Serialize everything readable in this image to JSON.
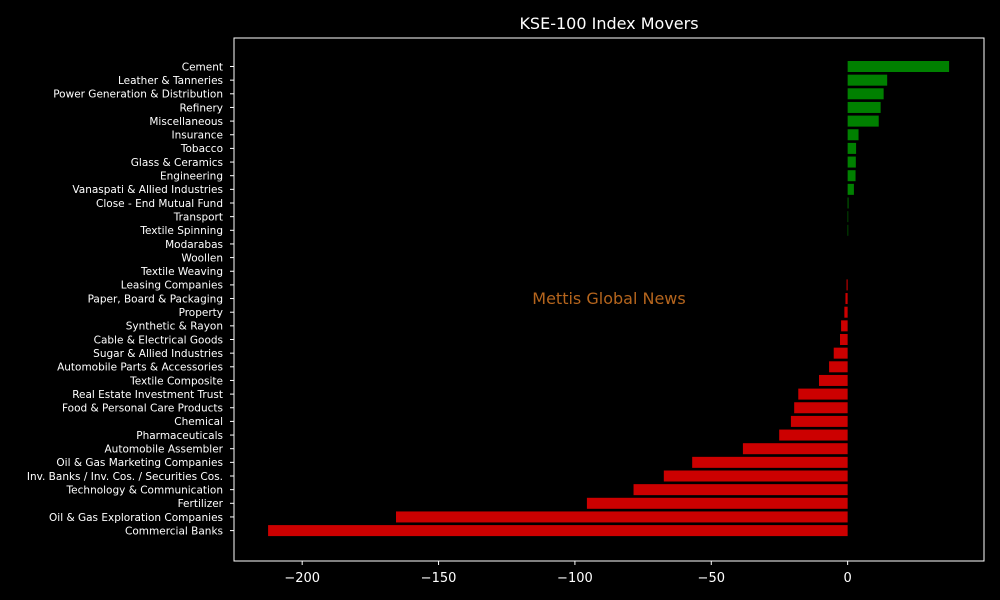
{
  "chart_data": {
    "type": "bar",
    "orientation": "horizontal",
    "title": "KSE-100 Index Movers",
    "xlabel": "",
    "ylabel": "",
    "xlim": [
      -225,
      50
    ],
    "x_ticks": [
      -200,
      -150,
      -100,
      -50,
      0
    ],
    "x_tick_labels": [
      "−200",
      "−150",
      "−100",
      "−50",
      "0"
    ],
    "grid": false,
    "colors": {
      "positive": "#008000",
      "negative": "#cc0000",
      "background": "#000000",
      "text": "#ffffff",
      "watermark": "#b5651d"
    },
    "watermark": "Mettis Global News",
    "categories": [
      "Cement",
      "Leather & Tanneries",
      "Power Generation & Distribution",
      "Refinery",
      "Miscellaneous",
      "Insurance",
      "Tobacco",
      "Glass & Ceramics",
      "Engineering",
      "Vanaspati & Allied Industries",
      "Close - End Mutual Fund",
      "Transport",
      "Textile Spinning",
      "Modarabas",
      "Woollen",
      "Textile Weaving",
      "Leasing Companies",
      "Paper, Board & Packaging",
      "Property",
      "Synthetic & Rayon",
      "Cable & Electrical Goods",
      "Sugar & Allied Industries",
      "Automobile Parts & Accessories",
      "Textile Composite",
      "Real Estate Investment Trust",
      "Food & Personal Care Products",
      "Chemical",
      "Pharmaceuticals",
      "Automobile Assembler",
      "Oil & Gas Marketing Companies",
      "Inv. Banks / Inv. Cos. / Securities Cos.",
      "Technology & Communication",
      "Fertilizer",
      "Oil & Gas Exploration Companies",
      "Commercial Banks"
    ],
    "values": [
      37.2,
      14.5,
      13.2,
      12.1,
      11.4,
      4.0,
      3.1,
      3.0,
      2.9,
      2.3,
      0.3,
      0.2,
      0.2,
      0,
      0,
      0,
      -0.4,
      -0.8,
      -1.2,
      -2.4,
      -2.8,
      -5.1,
      -6.8,
      -10.5,
      -18.1,
      -19.6,
      -20.8,
      -25.1,
      -38.4,
      -57.0,
      -67.4,
      -78.5,
      -95.6,
      -165.6,
      -212.5
    ]
  }
}
